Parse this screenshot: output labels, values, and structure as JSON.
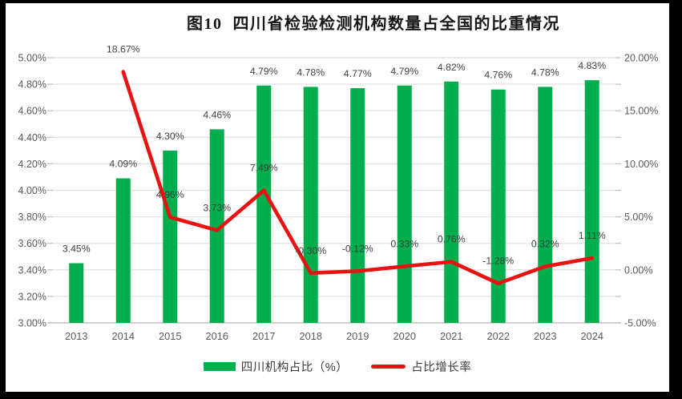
{
  "title": "图10  四川省检验检测机构数量占全国的比重情况",
  "colors": {
    "bar": "#00AE4D",
    "line": "#E91212",
    "grid": "#E3E3E3",
    "axis_line": "#C2C2C2",
    "axis_text": "#595959",
    "data_label": "#3F3F3F",
    "frame": "#000000",
    "background": "#FFFFFF"
  },
  "legend": {
    "items": [
      {
        "label": "四川机构占比（%）",
        "swatch": "bar"
      },
      {
        "label": "占比增长率",
        "swatch": "line"
      }
    ]
  },
  "chart_data": {
    "type": "combo-bar-line",
    "title": "图10  四川省检验检测机构数量占全国的比重情况",
    "categories": [
      "2013",
      "2014",
      "2015",
      "2016",
      "2017",
      "2018",
      "2019",
      "2020",
      "2021",
      "2022",
      "2023",
      "2024"
    ],
    "series": [
      {
        "name": "四川机构占比（%）",
        "type": "bar",
        "axis": "left",
        "color": "#00AE4D",
        "values": [
          3.45,
          4.09,
          4.3,
          4.46,
          4.79,
          4.78,
          4.77,
          4.79,
          4.82,
          4.76,
          4.78,
          4.83
        ],
        "labels": [
          "3.45%",
          "4.09%",
          "4.30%",
          "4.46%",
          "4.79%",
          "4.78%",
          "4.77%",
          "4.79%",
          "4.82%",
          "4.76%",
          "4.78%",
          "4.83%"
        ]
      },
      {
        "name": "占比增长率",
        "type": "line",
        "axis": "right",
        "color": "#E91212",
        "values": [
          null,
          18.67,
          4.96,
          3.73,
          7.49,
          -0.3,
          -0.12,
          0.33,
          0.76,
          -1.28,
          0.32,
          1.11
        ],
        "labels": [
          null,
          "18.67%",
          "4.96%",
          "3.73%",
          "7.49%",
          "-0.30%",
          "-0.12%",
          "0.33%",
          "0.76%",
          "-1.28%",
          "0.32%",
          "1.11%"
        ]
      }
    ],
    "left_axis": {
      "min": 3.0,
      "max": 5.0,
      "step": 0.2,
      "tick_labels": [
        "5.00%",
        "4.80%",
        "4.60%",
        "4.40%",
        "4.20%",
        "4.00%",
        "3.80%",
        "3.60%",
        "3.40%",
        "3.20%",
        "3.00%"
      ]
    },
    "right_axis": {
      "min": -5.0,
      "max": 20.0,
      "label_step": 5.0,
      "tick_step": 2.5,
      "tick_labels": [
        "20.00%",
        "15.00%",
        "10.00%",
        "5.00%",
        "0.00%",
        "-5.00%"
      ]
    },
    "grid": true,
    "legend_position": "bottom"
  }
}
